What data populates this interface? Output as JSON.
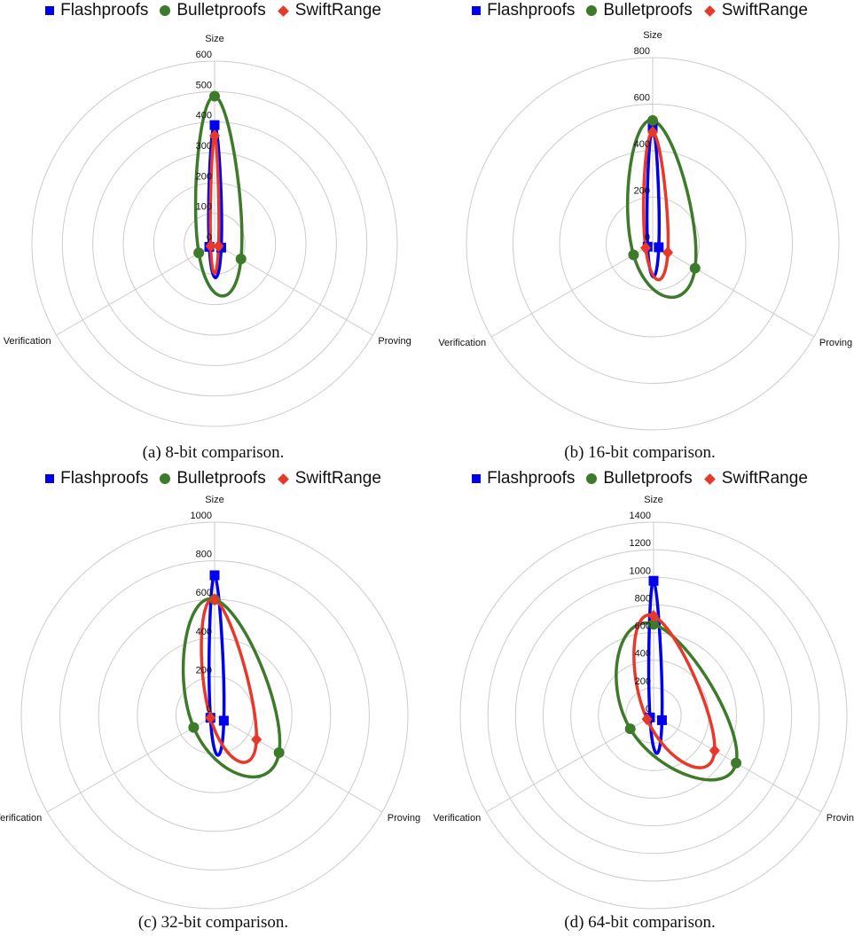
{
  "chart_data": [
    {
      "type": "radar",
      "caption": "(a) 8-bit comparison.",
      "axes": [
        "Size",
        "Proving",
        "Verification"
      ],
      "rmax": 600,
      "ticks": [
        0,
        100,
        200,
        300,
        400,
        500,
        600
      ],
      "legend": "top",
      "series": [
        {
          "name": "Flashproofs",
          "color": "#0000ee",
          "marker": "square",
          "values": [
            390,
            25,
            20
          ]
        },
        {
          "name": "Bulletproofs",
          "color": "#3d7a2a",
          "marker": "circle",
          "values": [
            485,
            100,
            60
          ]
        },
        {
          "name": "SwiftRange",
          "color": "#e8382a",
          "marker": "diamond",
          "values": [
            355,
            15,
            15
          ]
        }
      ]
    },
    {
      "type": "radar",
      "caption": "(b) 16-bit comparison.",
      "axes": [
        "Size",
        "Proving",
        "Verification"
      ],
      "rmax": 800,
      "ticks": [
        0,
        200,
        400,
        600,
        800
      ],
      "legend": "top",
      "series": [
        {
          "name": "Flashproofs",
          "color": "#0000ee",
          "marker": "square",
          "values": [
            500,
            30,
            25
          ]
        },
        {
          "name": "Bulletproofs",
          "color": "#3d7a2a",
          "marker": "circle",
          "values": [
            530,
            210,
            95
          ]
        },
        {
          "name": "SwiftRange",
          "color": "#e8382a",
          "marker": "diamond",
          "values": [
            480,
            75,
            35
          ]
        }
      ]
    },
    {
      "type": "radar",
      "caption": "(c) 32-bit comparison.",
      "axes": [
        "Size",
        "Proving",
        "Verification"
      ],
      "rmax": 1000,
      "ticks": [
        0,
        200,
        400,
        600,
        800,
        1000
      ],
      "legend": "top",
      "series": [
        {
          "name": "Flashproofs",
          "color": "#0000ee",
          "marker": "square",
          "values": [
            725,
            55,
            25
          ]
        },
        {
          "name": "Bulletproofs",
          "color": "#3d7a2a",
          "marker": "circle",
          "values": [
            600,
            385,
            125
          ]
        },
        {
          "name": "SwiftRange",
          "color": "#e8382a",
          "marker": "diamond",
          "values": [
            600,
            250,
            25
          ]
        }
      ]
    },
    {
      "type": "radar",
      "caption": "(d) 64-bit comparison.",
      "axes": [
        "Size",
        "Proving",
        "Verification"
      ],
      "rmax": 1400,
      "ticks": [
        0,
        200,
        400,
        600,
        800,
        1000,
        1200,
        1400
      ],
      "legend": "top",
      "series": [
        {
          "name": "Flashproofs",
          "color": "#0000ee",
          "marker": "square",
          "values": [
            975,
            70,
            30
          ]
        },
        {
          "name": "Bulletproofs",
          "color": "#3d7a2a",
          "marker": "circle",
          "values": [
            660,
            690,
            195
          ]
        },
        {
          "name": "SwiftRange",
          "color": "#e8382a",
          "marker": "diamond",
          "values": [
            720,
            510,
            55
          ]
        }
      ]
    }
  ]
}
